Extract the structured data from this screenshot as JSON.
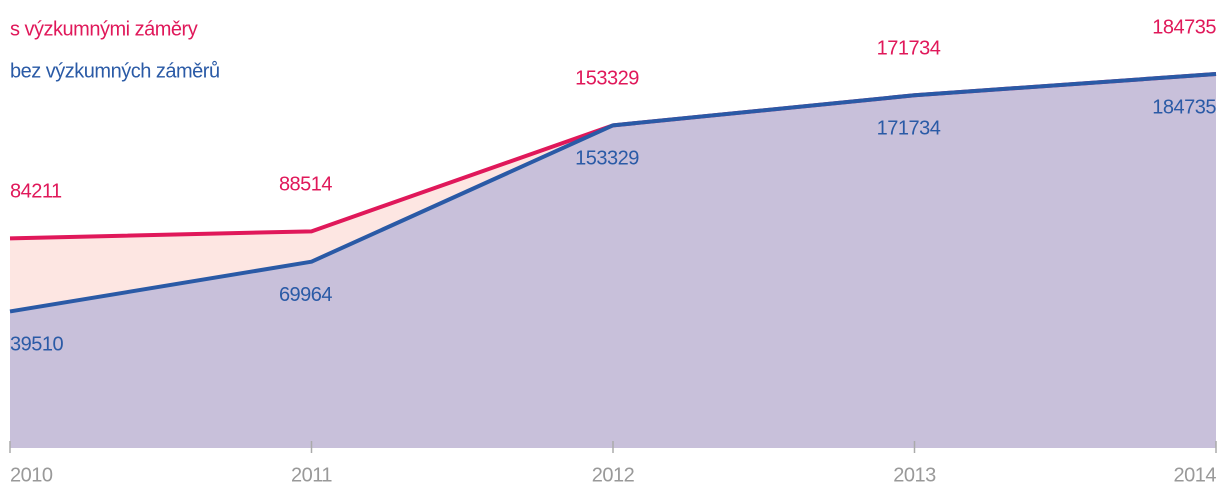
{
  "chart_data": {
    "type": "area",
    "categories": [
      "2010",
      "2011",
      "2012",
      "2013",
      "2014"
    ],
    "series": [
      {
        "name": "s výzkumnými záměry",
        "color": "#e0185a",
        "fill": "#fde6e2",
        "values": [
          84211,
          88514,
          153329,
          171734,
          184735
        ]
      },
      {
        "name": "bez výzkumných záměrů",
        "color": "#2a5aa6",
        "fill": "#c8c0da",
        "values": [
          39510,
          69964,
          153329,
          171734,
          184735
        ]
      }
    ],
    "ylim": [
      -44000,
      230000
    ]
  }
}
